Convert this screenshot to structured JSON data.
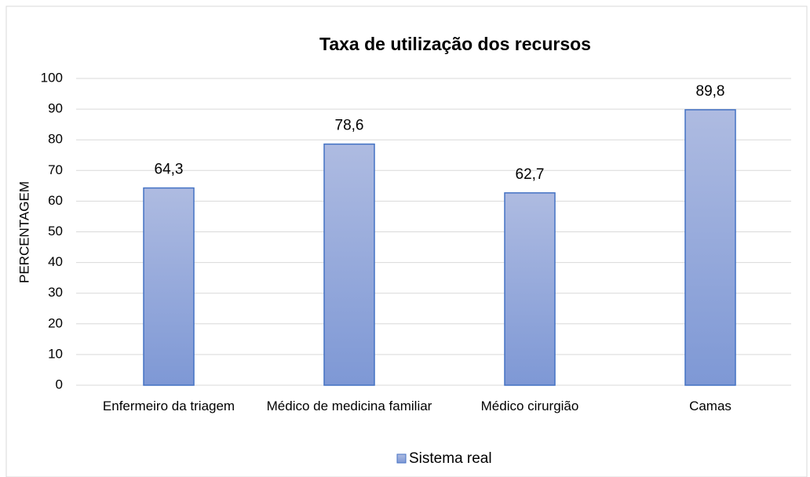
{
  "chart_data": {
    "type": "bar",
    "title": "Taxa de utilização dos recursos",
    "y_label": "PERCENTAGEM",
    "categories": [
      "Enfermeiro da triagem",
      "Médico de medicina familiar",
      "Médico cirurgião",
      "Camas"
    ],
    "series": [
      {
        "name": "Sistema real",
        "color": "#4472c4",
        "values": [
          64.3,
          78.6,
          62.7,
          89.8
        ],
        "value_labels": [
          "64,3",
          "78,6",
          "62,7",
          "89,8"
        ]
      }
    ],
    "ylim": [
      0,
      100
    ],
    "yticks": [
      0,
      10,
      20,
      30,
      40,
      50,
      60,
      70,
      80,
      90,
      100
    ],
    "grid": true,
    "legend": "bottom"
  }
}
